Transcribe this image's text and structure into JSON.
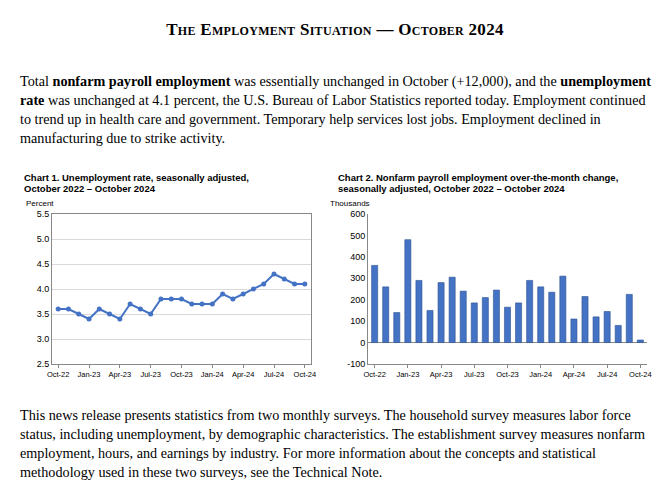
{
  "header": {
    "title": "The Employment Situation — October 2024"
  },
  "intro": [
    {
      "text": "Total "
    },
    {
      "text": "nonfarm payroll employment",
      "bold": true
    },
    {
      "text": " was essentially unchanged in October (+12,000), and the "
    },
    {
      "text": "unemployment rate",
      "bold": true
    },
    {
      "text": " was unchanged at 4.1 percent, the U.S. Bureau of Labor Statistics reported today. Employment continued to trend up in health care and government. Temporary help services lost jobs. Employment declined in manufacturing due to strike activity."
    }
  ],
  "chart_data": [
    {
      "type": "line",
      "title": "Chart 1. Unemployment rate, seasonally adjusted, October 2022 – October 2024",
      "ylabel": "Percent",
      "categories": [
        "Oct-22",
        null,
        null,
        "Jan-23",
        null,
        null,
        "Apr-23",
        null,
        null,
        "Jul-23",
        null,
        null,
        "Oct-23",
        null,
        null,
        "Jan-24",
        null,
        null,
        "Apr-24",
        null,
        null,
        "Jul-24",
        null,
        null,
        "Oct-24"
      ],
      "values": [
        3.6,
        3.6,
        3.5,
        3.4,
        3.6,
        3.5,
        3.4,
        3.7,
        3.6,
        3.5,
        3.8,
        3.8,
        3.8,
        3.7,
        3.7,
        3.7,
        3.9,
        3.8,
        3.9,
        4.0,
        4.1,
        4.3,
        4.2,
        4.1,
        4.1
      ],
      "color": "#4472c4",
      "marker": "circle",
      "line_style": "solid",
      "ylim": [
        2.5,
        5.5
      ],
      "yticks": [
        2.5,
        {
          "value": 3,
          "label": "3.0"
        },
        3.5,
        {
          "value": 4,
          "label": "4.0"
        },
        4.5,
        {
          "value": 5,
          "label": "5.0"
        },
        5.5
      ],
      "grid": true
    },
    {
      "type": "bar",
      "title": "Chart 2. Nonfarm payroll employment over-the-month change, seasonally adjusted, October 2022 – October 2024",
      "ylabel": "Thousands",
      "categories": [
        "Oct-22",
        null,
        null,
        "Jan-23",
        null,
        null,
        "Apr-23",
        null,
        null,
        "Jul-23",
        null,
        null,
        "Oct-23",
        null,
        null,
        "Jan-24",
        null,
        null,
        "Apr-24",
        null,
        null,
        "Jul-24",
        null,
        null,
        "Oct-24"
      ],
      "values": [
        360,
        260,
        140,
        480,
        290,
        150,
        280,
        305,
        240,
        185,
        210,
        245,
        165,
        185,
        290,
        260,
        235,
        310,
        110,
        215,
        120,
        145,
        80,
        225,
        12
      ],
      "color": "#4472c4",
      "ylim": [
        -100,
        600
      ],
      "yticks": [
        -100,
        0,
        100,
        200,
        300,
        400,
        500,
        600
      ],
      "grid": false
    }
  ],
  "footer": "This news release presents statistics from two monthly surveys. The household survey measures labor force status, including unemployment, by demographic characteristics. The establishment survey measures nonfarm employment, hours, and earnings by industry. For more information about the concepts and statistical methodology used in these two surveys, see the Technical Note."
}
